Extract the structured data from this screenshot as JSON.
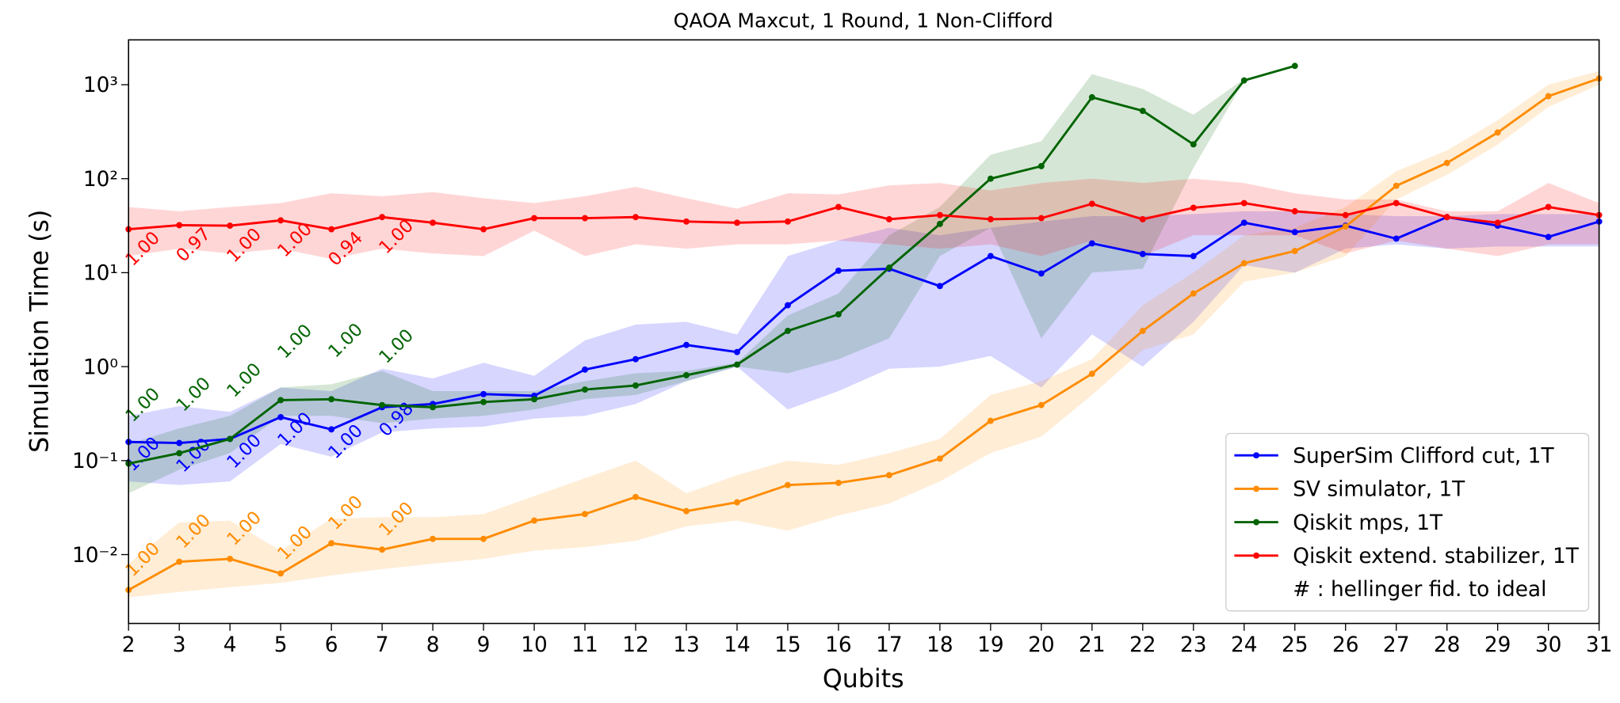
{
  "chart_data": {
    "type": "line",
    "title": "QAOA Maxcut, 1 Round, 1 Non-Clifford",
    "xlabel": "Qubits",
    "ylabel": "Simulation Time (s)",
    "x": [
      2,
      3,
      4,
      5,
      6,
      7,
      8,
      9,
      10,
      11,
      12,
      13,
      14,
      15,
      16,
      17,
      18,
      19,
      20,
      21,
      22,
      23,
      24,
      25,
      26,
      27,
      28,
      29,
      30,
      31
    ],
    "xlim": [
      2,
      31
    ],
    "xticks": [
      2,
      3,
      4,
      5,
      6,
      7,
      8,
      9,
      10,
      11,
      12,
      13,
      14,
      15,
      16,
      17,
      18,
      19,
      20,
      21,
      22,
      23,
      24,
      25,
      26,
      27,
      28,
      29,
      30,
      31
    ],
    "ylim": [
      0.00185,
      3000
    ],
    "yscale": "log",
    "yticks": [
      {
        "value": 0.01,
        "label": "10⁻²"
      },
      {
        "value": 0.1,
        "label": "10⁻¹"
      },
      {
        "value": 1,
        "label": "10⁰"
      },
      {
        "value": 10,
        "label": "10¹"
      },
      {
        "value": 100,
        "label": "10²"
      },
      {
        "value": 1000,
        "label": "10³"
      }
    ],
    "grid": false,
    "legend": "lower right",
    "legend_note": "# : hellinger fid. to ideal",
    "series": [
      {
        "name": "SuperSim Clifford cut, 1T",
        "color": "#0000ff",
        "values": [
          0.158,
          0.154,
          0.17,
          0.29,
          0.215,
          0.37,
          0.4,
          0.51,
          0.49,
          0.93,
          1.2,
          1.7,
          1.43,
          4.5,
          10.5,
          11,
          7.2,
          15,
          9.8,
          20.5,
          15.8,
          15,
          34,
          27,
          31.6,
          23,
          39,
          31.6,
          24,
          35
        ],
        "upper": [
          0.3,
          0.38,
          0.33,
          0.6,
          0.55,
          0.95,
          0.75,
          1.1,
          0.8,
          1.9,
          2.8,
          3,
          2.2,
          15,
          22,
          30,
          25,
          30,
          35,
          40,
          40,
          42,
          45,
          45,
          42,
          40,
          40,
          42,
          42,
          42
        ],
        "lower": [
          0.06,
          0.055,
          0.06,
          0.15,
          0.11,
          0.2,
          0.22,
          0.23,
          0.28,
          0.3,
          0.4,
          0.7,
          1.0,
          0.35,
          0.55,
          0.95,
          1.0,
          1.3,
          0.6,
          2.2,
          1.0,
          3.0,
          12,
          10,
          18,
          20,
          18,
          19,
          19,
          19
        ],
        "fidelity_labels": [
          "1.00",
          "1.00",
          "1.00",
          "1.00",
          "1.00",
          "0.98"
        ]
      },
      {
        "name": "SV simulator, 1T",
        "color": "#ff8c00",
        "values": [
          0.0042,
          0.0084,
          0.009,
          0.0063,
          0.0132,
          0.0113,
          0.0147,
          0.0147,
          0.023,
          0.027,
          0.041,
          0.029,
          0.036,
          0.055,
          0.058,
          0.07,
          0.105,
          0.265,
          0.39,
          0.84,
          2.4,
          6.0,
          12.6,
          17,
          31,
          84,
          147,
          310,
          755,
          1165
        ],
        "upper": [
          0.008,
          0.022,
          0.023,
          0.011,
          0.024,
          0.025,
          0.025,
          0.027,
          0.042,
          0.065,
          0.1,
          0.045,
          0.07,
          0.1,
          0.09,
          0.12,
          0.17,
          0.5,
          0.7,
          1.2,
          4.5,
          10,
          25,
          30,
          50,
          120,
          200,
          420,
          1000,
          1400
        ],
        "lower": [
          0.0035,
          0.004,
          0.0045,
          0.005,
          0.006,
          0.007,
          0.008,
          0.009,
          0.011,
          0.012,
          0.014,
          0.02,
          0.023,
          0.018,
          0.026,
          0.035,
          0.06,
          0.12,
          0.18,
          0.5,
          1.5,
          2.2,
          8,
          10,
          15,
          60,
          110,
          230,
          580,
          1000
        ],
        "fidelity_labels": [
          "1.00",
          "1.00",
          "1.00",
          "1.00",
          "1.00",
          "1.00"
        ]
      },
      {
        "name": "Qiskit mps, 1T",
        "color": "#006400",
        "values": [
          0.093,
          0.12,
          0.17,
          0.44,
          0.45,
          0.39,
          0.37,
          0.42,
          0.45,
          0.57,
          0.63,
          0.81,
          1.05,
          2.4,
          3.6,
          11.3,
          33,
          100,
          136,
          735,
          527,
          232,
          1110,
          1585,
          null,
          null,
          null,
          null,
          null,
          null
        ],
        "upper": [
          0.15,
          0.22,
          0.3,
          0.6,
          0.65,
          0.9,
          0.55,
          0.55,
          0.55,
          0.7,
          0.85,
          0.9,
          1.1,
          3.5,
          6,
          25,
          50,
          180,
          250,
          1300,
          900,
          480,
          1150,
          1585,
          null,
          null,
          null,
          null,
          null,
          null
        ],
        "lower": [
          0.045,
          0.08,
          0.12,
          0.3,
          0.3,
          0.25,
          0.28,
          0.3,
          0.35,
          0.45,
          0.5,
          0.7,
          1.0,
          0.85,
          1.2,
          2,
          15,
          30,
          2,
          10,
          11,
          130,
          1100,
          1585,
          null,
          null,
          null,
          null,
          null,
          null
        ],
        "fidelity_labels": [
          "1.00",
          "1.00",
          "1.00",
          "1.00",
          "1.00",
          "1.00"
        ]
      },
      {
        "name": "Qiskit extend. stabilizer, 1T",
        "color": "#ff0000",
        "values": [
          29,
          32,
          31.6,
          36,
          29,
          39,
          34,
          29,
          38,
          38,
          39,
          35,
          34,
          35,
          50,
          37,
          41,
          37,
          38,
          54,
          37,
          49,
          55,
          45,
          41,
          55,
          39,
          34,
          50,
          41
        ],
        "upper": [
          50,
          45,
          50,
          55,
          70,
          65,
          72,
          62,
          55,
          65,
          82,
          62,
          48,
          70,
          68,
          85,
          90,
          75,
          90,
          100,
          90,
          100,
          90,
          70,
          60,
          60,
          45,
          45,
          90,
          55
        ],
        "lower": [
          15,
          18,
          16,
          18,
          14,
          18,
          16,
          15,
          28,
          15,
          20,
          18,
          20,
          20,
          22,
          20,
          18,
          20,
          15,
          22,
          15,
          25,
          25,
          25,
          16,
          22,
          18,
          15,
          20,
          20
        ],
        "fidelity_labels": [
          "1.00",
          "0.97",
          "1.00",
          "1.00",
          "0.94",
          "1.00"
        ]
      }
    ]
  }
}
